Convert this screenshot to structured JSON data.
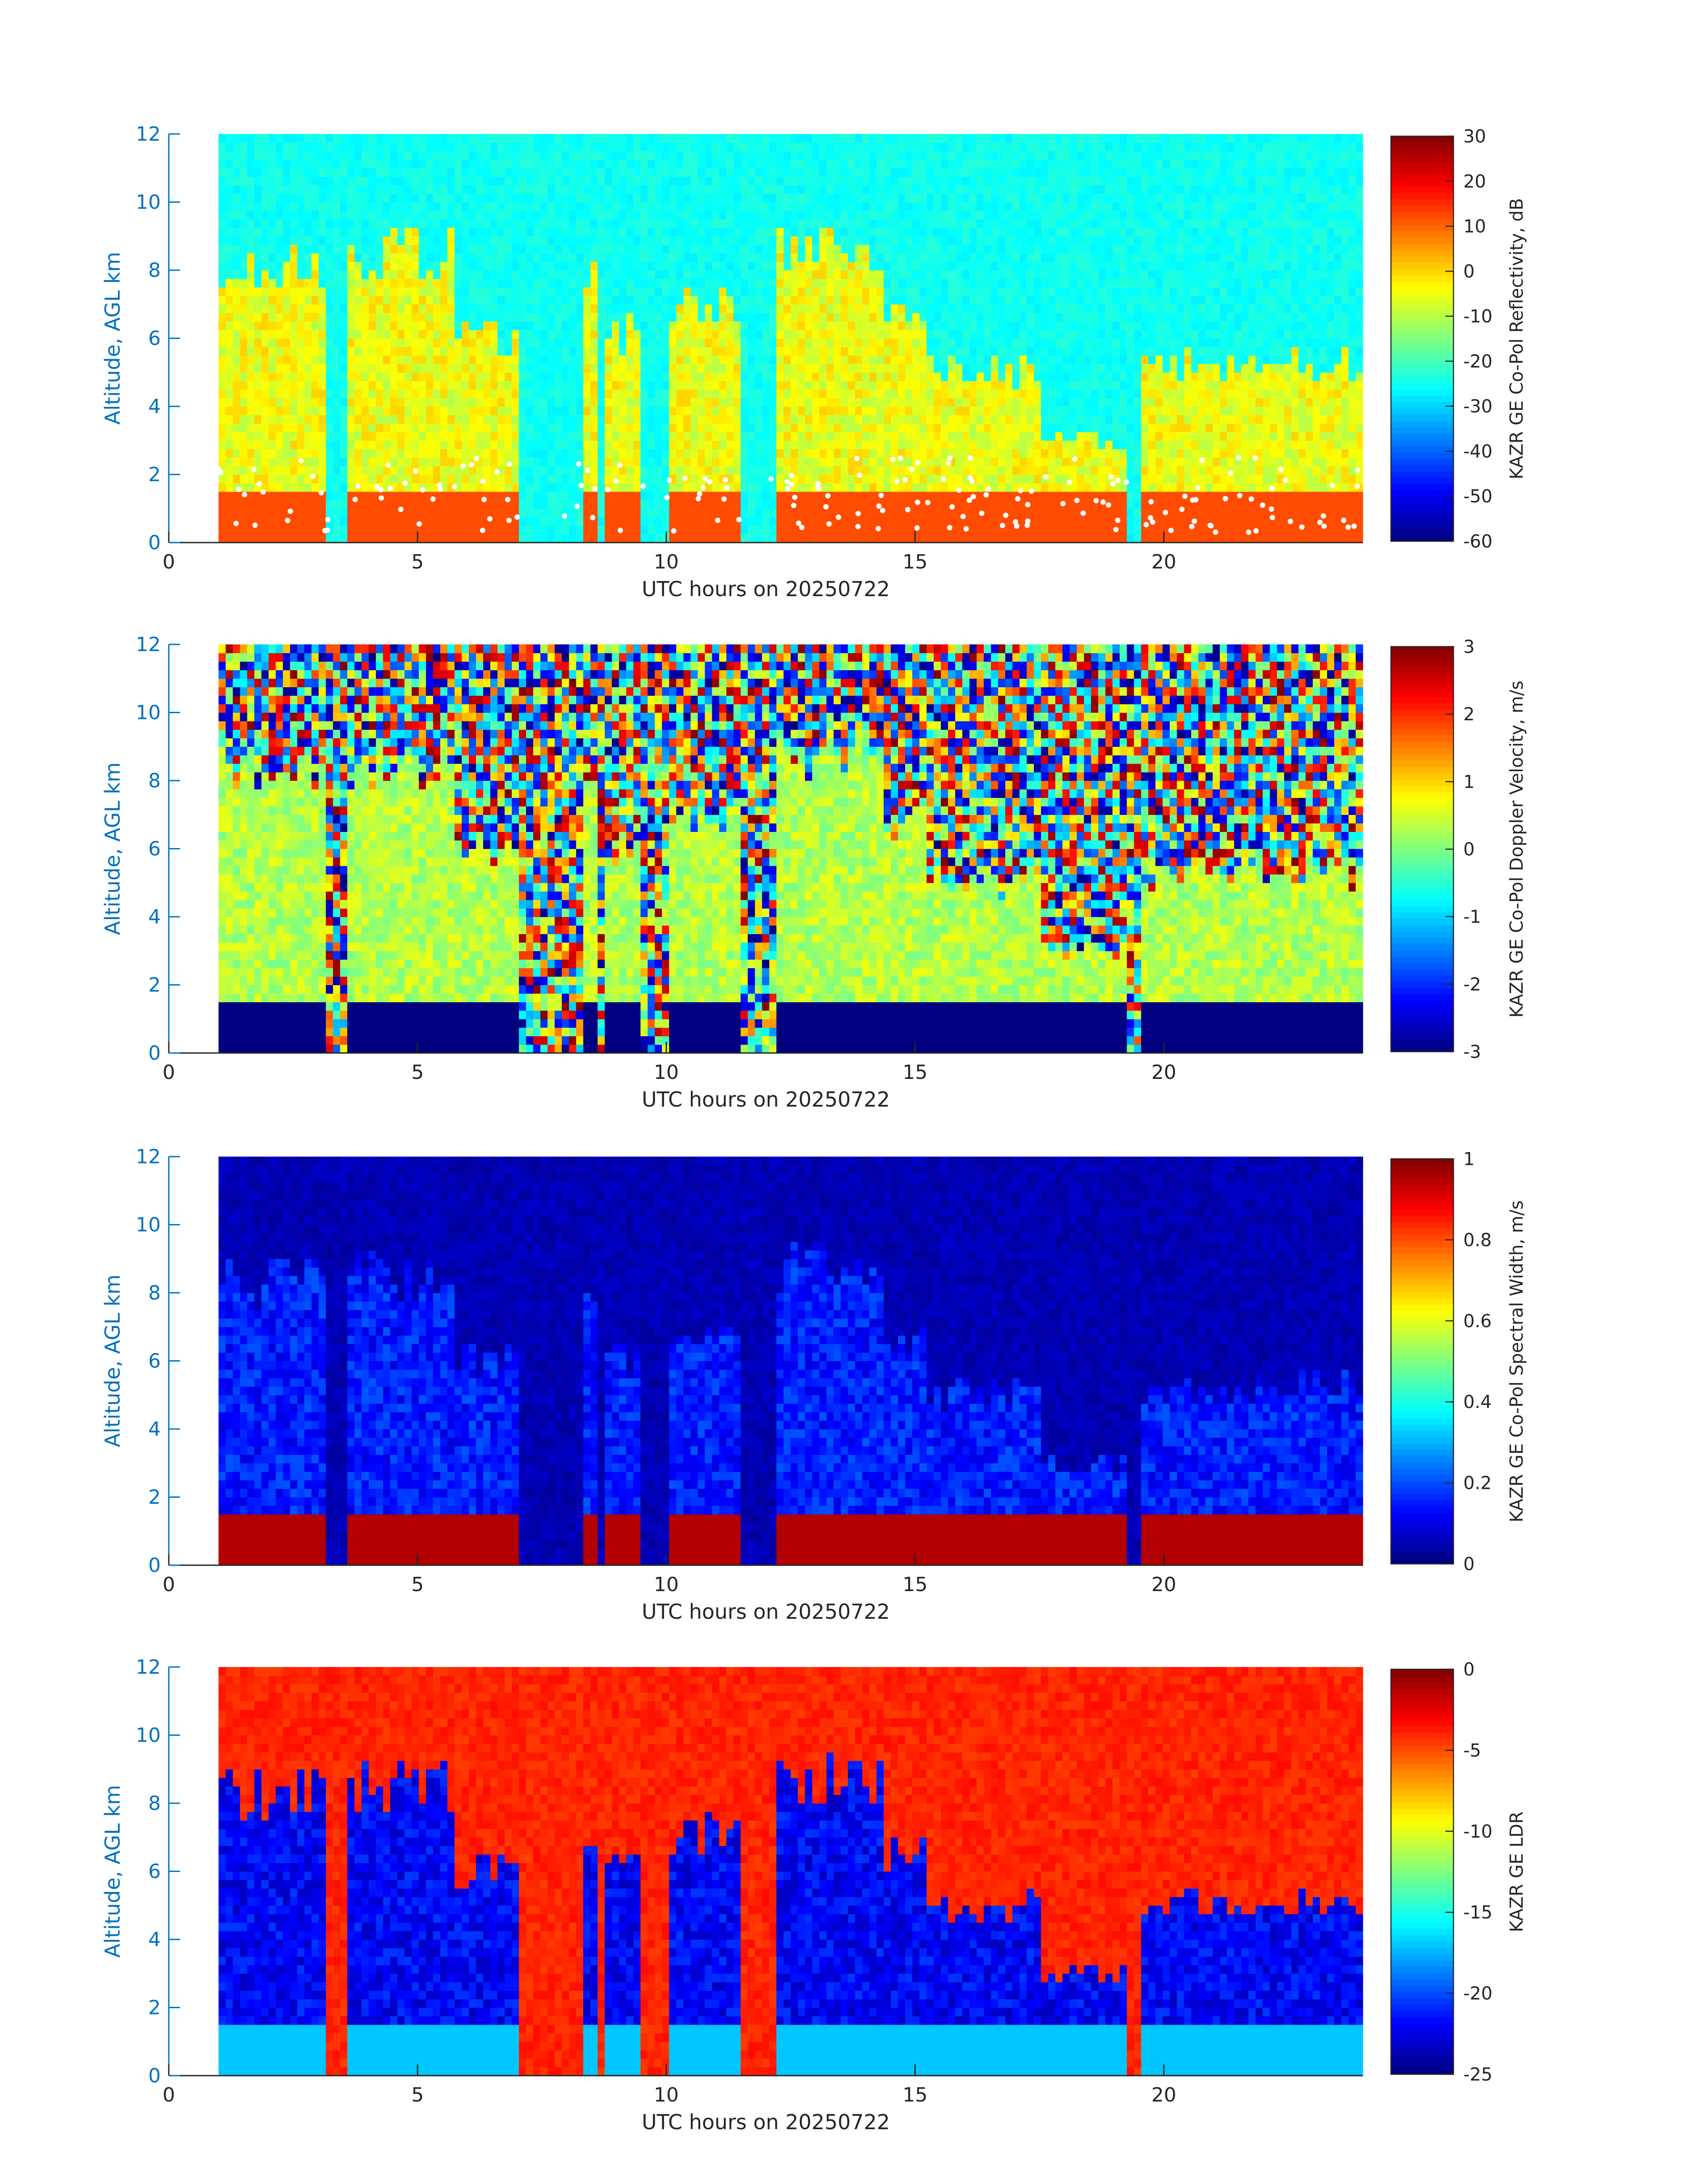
{
  "colors": {
    "axis_y": "#0072bd",
    "axis_x": "#262626",
    "colormap": "jet"
  },
  "chart_data": [
    {
      "type": "heatmap",
      "title": "",
      "xlabel": "UTC hours on 20250722",
      "ylabel": "Altitude, AGL km",
      "xlim": [
        0,
        24
      ],
      "ylim": [
        0,
        12
      ],
      "data_x_range": [
        1,
        24
      ],
      "xticks": [
        "0",
        "5",
        "10",
        "15",
        "20"
      ],
      "yticks": [
        "0",
        "2",
        "4",
        "6",
        "8",
        "10",
        "12"
      ],
      "colorbar": {
        "label": "KAZR GE Co-Pol Reflectivity, dB",
        "range": [
          -60,
          30
        ],
        "ticks": [
          "30",
          "20",
          "10",
          "0",
          "-10",
          "-20",
          "-30",
          "-40",
          "-50",
          "-60"
        ]
      },
      "background_value": -25,
      "cloud_value": -5,
      "low_layer_value": 12,
      "low_layer_top_km": 1.5,
      "cloud_base_markers": "white dots",
      "marker_color": "#ffffff"
    },
    {
      "type": "heatmap",
      "title": "",
      "xlabel": "UTC hours on 20250722",
      "ylabel": "Altitude, AGL km",
      "xlim": [
        0,
        24
      ],
      "ylim": [
        0,
        12
      ],
      "data_x_range": [
        1,
        24
      ],
      "xticks": [
        "0",
        "5",
        "10",
        "15",
        "20"
      ],
      "yticks": [
        "0",
        "2",
        "4",
        "6",
        "8",
        "10",
        "12"
      ],
      "colorbar": {
        "label": "KAZR GE Co-Pol Doppler Velocity, m/s",
        "range": [
          -3,
          3
        ],
        "ticks": [
          "3",
          "2",
          "1",
          "0",
          "-1",
          "-2",
          "-3"
        ]
      },
      "background_value": "noise",
      "cloud_value": 0.3,
      "low_layer_value": -3,
      "low_layer_top_km": 1.5
    },
    {
      "type": "heatmap",
      "title": "",
      "xlabel": "UTC hours on 20250722",
      "ylabel": "Altitude, AGL km",
      "xlim": [
        0,
        24
      ],
      "ylim": [
        0,
        12
      ],
      "data_x_range": [
        1,
        24
      ],
      "xticks": [
        "0",
        "5",
        "10",
        "15",
        "20"
      ],
      "yticks": [
        "0",
        "2",
        "4",
        "6",
        "8",
        "10",
        "12"
      ],
      "colorbar": {
        "label": "KAZR GE Co-Pol Spectral Width, m/s",
        "range": [
          0,
          1
        ],
        "ticks": [
          "1",
          "0.8",
          "0.6",
          "0.4",
          "0.2",
          "0"
        ]
      },
      "background_value": 0.05,
      "cloud_value": 0.15,
      "low_layer_value": 0.95,
      "low_layer_top_km": 1.5
    },
    {
      "type": "heatmap",
      "title": "",
      "xlabel": "UTC hours on 20250722",
      "ylabel": "Altitude, AGL km",
      "xlim": [
        0,
        24
      ],
      "ylim": [
        0,
        12
      ],
      "data_x_range": [
        1,
        24
      ],
      "xticks": [
        "0",
        "5",
        "10",
        "15",
        "20"
      ],
      "yticks": [
        "0",
        "2",
        "4",
        "6",
        "8",
        "10",
        "12"
      ],
      "colorbar": {
        "label": "KAZR GE LDR",
        "range": [
          -25,
          0
        ],
        "ticks": [
          "0",
          "-5",
          "-10",
          "-15",
          "-20",
          "-25"
        ]
      },
      "background_value": -4,
      "cloud_value": -22,
      "low_layer_value": -17,
      "low_layer_top_km": 1.5
    }
  ],
  "cloud_segments_utc_hours": [
    {
      "x0": 1.0,
      "x1": 3.2,
      "top_km": 8.2
    },
    {
      "x0": 3.6,
      "x1": 5.8,
      "top_km": 8.5
    },
    {
      "x0": 5.8,
      "x1": 7.0,
      "top_km": 6.0
    },
    {
      "x0": 8.3,
      "x1": 8.6,
      "top_km": 7.5
    },
    {
      "x0": 8.7,
      "x1": 9.5,
      "top_km": 6.2
    },
    {
      "x0": 10.0,
      "x1": 11.5,
      "top_km": 7.0
    },
    {
      "x0": 12.2,
      "x1": 14.3,
      "top_km": 8.7
    },
    {
      "x0": 14.3,
      "x1": 15.2,
      "top_km": 6.5
    },
    {
      "x0": 15.2,
      "x1": 17.5,
      "top_km": 5.0
    },
    {
      "x0": 17.5,
      "x1": 19.3,
      "top_km": 3.0
    },
    {
      "x0": 19.5,
      "x1": 24.0,
      "top_km": 5.2
    }
  ]
}
